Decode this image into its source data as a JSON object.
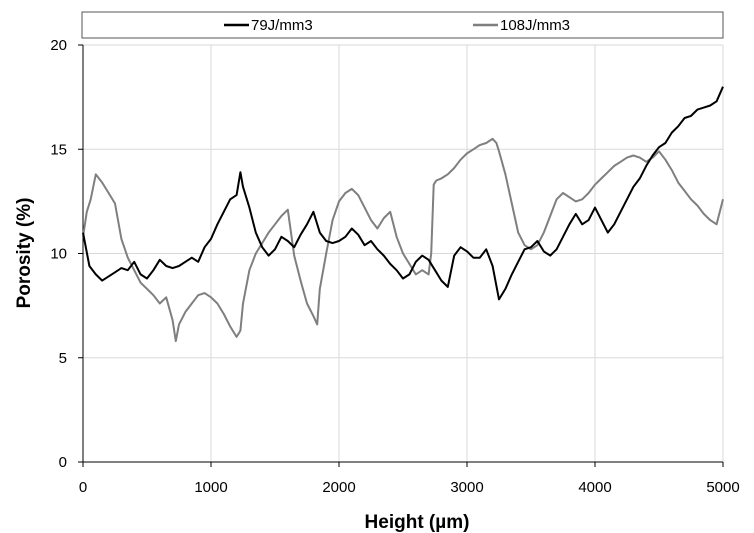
{
  "chart_data": {
    "type": "line",
    "title": "",
    "xlabel": "Height (µm)",
    "ylabel": "Porosity (%)",
    "xlim": [
      0,
      5000
    ],
    "ylim": [
      0,
      20
    ],
    "xticks": [
      0,
      1000,
      2000,
      3000,
      4000,
      5000
    ],
    "yticks": [
      0,
      5,
      10,
      15,
      20
    ],
    "grid": true,
    "legend": "top",
    "series": [
      {
        "name": "79J/mm3",
        "color": "#000000",
        "x": [
          0,
          50,
          100,
          150,
          200,
          250,
          300,
          350,
          400,
          450,
          500,
          550,
          600,
          650,
          700,
          750,
          800,
          850,
          900,
          950,
          1000,
          1050,
          1100,
          1150,
          1200,
          1230,
          1250,
          1300,
          1350,
          1400,
          1450,
          1500,
          1550,
          1600,
          1650,
          1700,
          1750,
          1800,
          1850,
          1900,
          1950,
          2000,
          2050,
          2100,
          2150,
          2200,
          2250,
          2300,
          2350,
          2400,
          2450,
          2500,
          2550,
          2600,
          2650,
          2700,
          2750,
          2800,
          2850,
          2900,
          2950,
          3000,
          3050,
          3100,
          3150,
          3200,
          3250,
          3300,
          3350,
          3400,
          3450,
          3500,
          3550,
          3600,
          3650,
          3700,
          3750,
          3800,
          3850,
          3900,
          3950,
          4000,
          4050,
          4100,
          4150,
          4200,
          4250,
          4300,
          4350,
          4400,
          4450,
          4500,
          4550,
          4600,
          4650,
          4700,
          4750,
          4800,
          4850,
          4900,
          4950,
          5000
        ],
        "y": [
          11.0,
          9.4,
          9.0,
          8.7,
          8.9,
          9.1,
          9.3,
          9.2,
          9.6,
          9.0,
          8.8,
          9.2,
          9.7,
          9.4,
          9.3,
          9.4,
          9.6,
          9.8,
          9.6,
          10.3,
          10.7,
          11.4,
          12.0,
          12.6,
          12.8,
          13.9,
          13.2,
          12.2,
          11.0,
          10.3,
          9.9,
          10.2,
          10.8,
          10.6,
          10.3,
          10.9,
          11.4,
          12.0,
          11.0,
          10.6,
          10.5,
          10.6,
          10.8,
          11.2,
          10.9,
          10.4,
          10.6,
          10.2,
          9.9,
          9.5,
          9.2,
          8.8,
          9.0,
          9.6,
          9.9,
          9.7,
          9.2,
          8.7,
          8.4,
          9.9,
          10.3,
          10.1,
          9.8,
          9.8,
          10.2,
          9.4,
          7.8,
          8.3,
          9.0,
          9.6,
          10.2,
          10.3,
          10.6,
          10.1,
          9.9,
          10.2,
          10.8,
          11.4,
          11.9,
          11.4,
          11.6,
          12.2,
          11.6,
          11.0,
          11.4,
          12.0,
          12.6,
          13.2,
          13.6,
          14.2,
          14.7,
          15.1,
          15.3,
          15.8,
          16.1,
          16.5,
          16.6,
          16.9,
          17.0,
          17.1,
          17.3,
          18.0
        ]
      },
      {
        "name": "108J/mm3",
        "color": "#7f7f7f",
        "x": [
          0,
          30,
          60,
          100,
          150,
          200,
          250,
          300,
          350,
          400,
          450,
          500,
          550,
          600,
          650,
          700,
          725,
          750,
          800,
          850,
          900,
          950,
          1000,
          1050,
          1100,
          1150,
          1200,
          1230,
          1250,
          1300,
          1350,
          1400,
          1450,
          1500,
          1550,
          1600,
          1650,
          1700,
          1750,
          1800,
          1830,
          1850,
          1900,
          1950,
          2000,
          2050,
          2100,
          2150,
          2200,
          2250,
          2300,
          2350,
          2400,
          2450,
          2500,
          2550,
          2600,
          2650,
          2700,
          2720,
          2740,
          2760,
          2800,
          2850,
          2900,
          2950,
          3000,
          3050,
          3100,
          3150,
          3200,
          3230,
          3250,
          3300,
          3350,
          3400,
          3450,
          3500,
          3550,
          3600,
          3650,
          3700,
          3750,
          3800,
          3850,
          3900,
          3950,
          4000,
          4050,
          4100,
          4150,
          4200,
          4250,
          4300,
          4350,
          4400,
          4450,
          4500,
          4550,
          4600,
          4650,
          4700,
          4750,
          4800,
          4850,
          4900,
          4950,
          5000
        ],
        "y": [
          10.8,
          12.0,
          12.6,
          13.8,
          13.4,
          12.9,
          12.4,
          10.7,
          9.8,
          9.2,
          8.6,
          8.3,
          8.0,
          7.6,
          7.9,
          6.8,
          5.8,
          6.6,
          7.2,
          7.6,
          8.0,
          8.1,
          7.9,
          7.6,
          7.1,
          6.5,
          6.0,
          6.3,
          7.6,
          9.2,
          10.0,
          10.5,
          11.0,
          11.4,
          11.8,
          12.1,
          9.9,
          8.7,
          7.6,
          7.0,
          6.6,
          8.3,
          10.0,
          11.6,
          12.5,
          12.9,
          13.1,
          12.8,
          12.2,
          11.6,
          11.2,
          11.7,
          12.0,
          10.8,
          10.0,
          9.5,
          9.0,
          9.2,
          9.0,
          10.0,
          13.3,
          13.5,
          13.6,
          13.8,
          14.1,
          14.5,
          14.8,
          15.0,
          15.2,
          15.3,
          15.5,
          15.3,
          14.9,
          13.8,
          12.4,
          11.0,
          10.4,
          10.2,
          10.4,
          11.0,
          11.8,
          12.6,
          12.9,
          12.7,
          12.5,
          12.6,
          12.9,
          13.3,
          13.6,
          13.9,
          14.2,
          14.4,
          14.6,
          14.7,
          14.6,
          14.4,
          14.6,
          14.9,
          14.5,
          14.0,
          13.4,
          13.0,
          12.6,
          12.3,
          11.9,
          11.6,
          11.4,
          12.6
        ]
      }
    ]
  }
}
